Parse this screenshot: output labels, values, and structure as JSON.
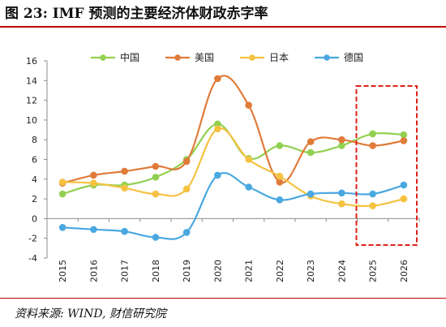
{
  "header": {
    "title": "图 23:  IMF 预测的主要经济体财政赤字率"
  },
  "footer": {
    "source": "资料来源: WIND, 财信研究院"
  },
  "chart_data": {
    "type": "line",
    "title": "",
    "xlabel": "",
    "ylabel": "",
    "x": [
      "2015",
      "2016",
      "2017",
      "2018",
      "2019",
      "2020",
      "2021",
      "2022",
      "2023",
      "2024",
      "2025",
      "2026"
    ],
    "ylim": [
      -4,
      16
    ],
    "yticks": [
      "16",
      "14",
      "12",
      "10",
      "8",
      "6",
      "4",
      "2",
      "0",
      "-2",
      "-4"
    ],
    "grid": false,
    "legend_position": "top",
    "highlight": {
      "from": "2025",
      "to": "2026",
      "style": "red dashed box"
    },
    "series": [
      {
        "name": "中国",
        "color": "#92D050",
        "values": [
          2.5,
          3.4,
          3.4,
          4.2,
          6.0,
          9.6,
          6.1,
          7.4,
          6.7,
          7.4,
          8.6,
          8.5
        ]
      },
      {
        "name": "美国",
        "color": "#E07B39",
        "values": [
          3.6,
          4.4,
          4.8,
          5.3,
          5.8,
          14.2,
          11.5,
          3.7,
          7.8,
          8.0,
          7.4,
          7.9
        ]
      },
      {
        "name": "日本",
        "color": "#F5C242",
        "values": [
          3.7,
          3.6,
          3.1,
          2.5,
          3.0,
          9.1,
          6.0,
          4.3,
          2.3,
          1.5,
          1.3,
          2.0
        ]
      },
      {
        "name": "德国",
        "color": "#4AA8E0",
        "values": [
          -0.9,
          -1.1,
          -1.3,
          -1.9,
          -1.4,
          4.4,
          3.2,
          1.9,
          2.5,
          2.6,
          2.5,
          3.4
        ]
      }
    ]
  }
}
